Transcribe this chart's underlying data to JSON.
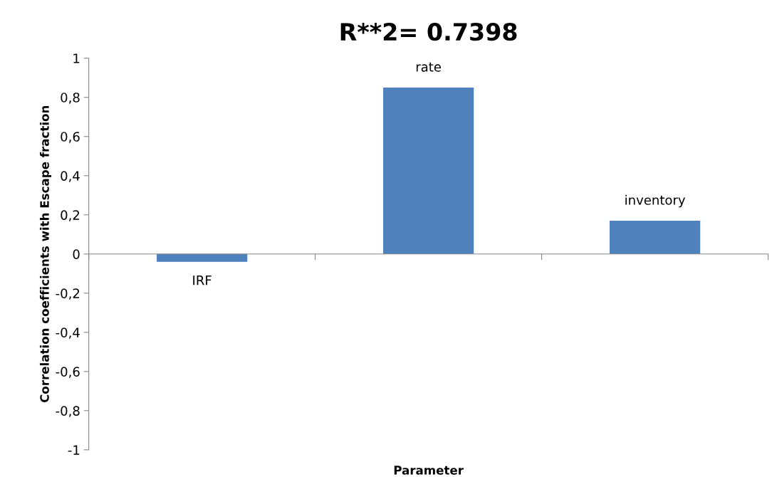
{
  "chart_data": {
    "type": "bar",
    "title": "R**2= 0.7398",
    "xlabel": "Parameter",
    "ylabel": "Correlation coefficients with Escape fraction",
    "categories": [
      "IRF",
      "rate",
      "inventory"
    ],
    "values": [
      -0.04,
      0.85,
      0.17
    ],
    "color": "#4f81bd",
    "ylim": [
      -1,
      1
    ],
    "yticks": [
      {
        "value": -1,
        "label": "-1"
      },
      {
        "value": -0.8,
        "label": "-0,8"
      },
      {
        "value": -0.6,
        "label": "-0,6"
      },
      {
        "value": -0.4,
        "label": "-0,4"
      },
      {
        "value": -0.2,
        "label": "-0,2"
      },
      0,
      {
        "value": 0.2,
        "label": "0,2"
      },
      {
        "value": 0.4,
        "label": "0,4"
      },
      {
        "value": 0.6,
        "label": "0,6"
      },
      {
        "value": 0.8,
        "label": "0,8"
      },
      1
    ],
    "legend": false
  }
}
